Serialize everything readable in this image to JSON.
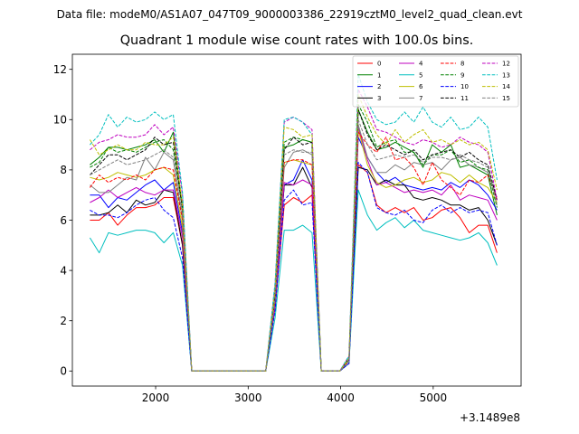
{
  "suptitle": "Data file: modeM0/AS1A07_047T09_9000003386_22919cztM0_level2_quad_clean.evt",
  "chart_data": {
    "type": "line",
    "title": "Quadrant 1 module wise count rates with 100.0s bins.",
    "xlabel": "",
    "ylabel": "",
    "x_offset_label": "+3.1489e8",
    "xlim": [
      1100,
      5950
    ],
    "ylim": [
      -0.6,
      12.6
    ],
    "x_ticks": [
      2000,
      3000,
      4000,
      5000
    ],
    "y_ticks": [
      0,
      2,
      4,
      6,
      8,
      10,
      12
    ],
    "legend_position": "top-right",
    "x": [
      1290,
      1390,
      1490,
      1590,
      1690,
      1790,
      1890,
      1990,
      2090,
      2190,
      2290,
      2390,
      2490,
      2590,
      2690,
      2790,
      2890,
      2990,
      3090,
      3190,
      3290,
      3390,
      3490,
      3590,
      3690,
      3790,
      3890,
      3990,
      4090,
      4190,
      4290,
      4390,
      4490,
      4590,
      4690,
      4790,
      4890,
      4990,
      5090,
      5190,
      5290,
      5390,
      5490,
      5590,
      5690
    ],
    "series": [
      {
        "name": "0",
        "color": "#ff0000",
        "dash": "solid",
        "values": [
          6.0,
          6.0,
          6.3,
          5.8,
          6.2,
          6.5,
          6.5,
          6.6,
          6.9,
          6.9,
          5.0,
          0,
          0,
          0,
          0,
          0,
          0,
          0,
          0,
          0,
          2.5,
          6.6,
          6.9,
          6.7,
          7.0,
          0,
          0,
          0,
          0.3,
          8.2,
          7.9,
          6.6,
          6.3,
          6.5,
          6.3,
          6.5,
          6.0,
          6.1,
          6.4,
          6.5,
          6.1,
          5.5,
          5.8,
          5.8,
          4.7
        ]
      },
      {
        "name": "1",
        "color": "#008000",
        "dash": "solid",
        "values": [
          8.2,
          8.5,
          8.9,
          8.9,
          8.8,
          8.9,
          9.0,
          9.2,
          8.7,
          9.5,
          6.5,
          0,
          0,
          0,
          0,
          0,
          0,
          0,
          0,
          0,
          3.0,
          8.9,
          9.0,
          9.2,
          9.1,
          0,
          0,
          0,
          0.5,
          10.4,
          9.5,
          8.8,
          8.9,
          9.1,
          8.9,
          8.7,
          8.1,
          9.0,
          8.7,
          9.0,
          8.1,
          8.2,
          8.0,
          7.8,
          6.2
        ]
      },
      {
        "name": "2",
        "color": "#0000ff",
        "dash": "solid",
        "values": [
          7.0,
          7.0,
          6.5,
          6.9,
          6.8,
          7.1,
          7.4,
          7.6,
          7.2,
          7.5,
          5.5,
          0,
          0,
          0,
          0,
          0,
          0,
          0,
          0,
          0,
          2.7,
          7.4,
          7.6,
          8.4,
          7.6,
          0,
          0,
          0,
          0.4,
          9.3,
          8.5,
          7.9,
          7.5,
          7.7,
          7.4,
          7.3,
          7.2,
          7.3,
          7.2,
          7.5,
          7.3,
          7.6,
          7.4,
          7.0,
          6.4
        ]
      },
      {
        "name": "3",
        "color": "#000000",
        "dash": "solid",
        "values": [
          6.2,
          6.2,
          6.3,
          6.6,
          6.3,
          6.8,
          6.6,
          6.7,
          7.2,
          7.1,
          5.0,
          0,
          0,
          0,
          0,
          0,
          0,
          0,
          0,
          0,
          2.6,
          7.4,
          7.4,
          8.1,
          7.3,
          0,
          0,
          0,
          0.4,
          8.1,
          8.0,
          7.4,
          7.6,
          7.4,
          7.4,
          6.9,
          6.8,
          6.9,
          6.8,
          6.6,
          6.6,
          6.4,
          6.5,
          6.0,
          5.0
        ]
      },
      {
        "name": "4",
        "color": "#bf00bf",
        "dash": "solid",
        "values": [
          6.7,
          6.9,
          7.2,
          6.9,
          7.1,
          7.3,
          7.1,
          7.0,
          7.2,
          7.2,
          5.3,
          0,
          0,
          0,
          0,
          0,
          0,
          0,
          0,
          0,
          2.6,
          7.5,
          7.4,
          7.6,
          7.4,
          0,
          0,
          0,
          0.4,
          9.7,
          8.4,
          7.4,
          7.5,
          7.3,
          7.1,
          7.2,
          7.1,
          7.2,
          7.0,
          7.4,
          6.8,
          7.0,
          6.9,
          6.8,
          6.0
        ]
      },
      {
        "name": "5",
        "color": "#00bfbf",
        "dash": "solid",
        "values": [
          5.3,
          4.7,
          5.5,
          5.4,
          5.5,
          5.6,
          5.6,
          5.5,
          5.1,
          5.5,
          4.2,
          0,
          0,
          0,
          0,
          0,
          0,
          0,
          0,
          0,
          2.1,
          5.6,
          5.6,
          5.8,
          5.5,
          0,
          0,
          0,
          0.3,
          7.2,
          6.2,
          5.6,
          5.9,
          6.1,
          5.7,
          6.0,
          5.6,
          5.5,
          5.4,
          5.3,
          5.2,
          5.3,
          5.5,
          5.1,
          4.2
        ]
      },
      {
        "name": "6",
        "color": "#bfbf00",
        "dash": "solid",
        "values": [
          7.7,
          7.6,
          7.7,
          7.9,
          7.8,
          7.7,
          7.8,
          8.0,
          8.1,
          7.8,
          5.7,
          0,
          0,
          0,
          0,
          0,
          0,
          0,
          0,
          0,
          2.8,
          8.3,
          8.4,
          8.3,
          8.2,
          0,
          0,
          0,
          0.4,
          9.6,
          8.2,
          7.5,
          7.3,
          7.4,
          7.6,
          7.7,
          7.5,
          7.6,
          7.9,
          7.8,
          7.5,
          7.8,
          7.5,
          7.3,
          6.7
        ]
      },
      {
        "name": "7",
        "color": "#808080",
        "dash": "solid",
        "values": [
          7.4,
          7.1,
          7.1,
          7.4,
          7.7,
          7.6,
          8.5,
          8.0,
          8.7,
          8.4,
          6.0,
          0,
          0,
          0,
          0,
          0,
          0,
          0,
          0,
          0,
          2.9,
          8.1,
          8.7,
          8.8,
          8.6,
          0,
          0,
          0,
          0.4,
          9.8,
          8.5,
          7.9,
          7.9,
          8.2,
          8.0,
          8.3,
          8.2,
          8.3,
          8.0,
          8.4,
          8.5,
          8.2,
          8.1,
          7.9,
          6.9
        ]
      },
      {
        "name": "8",
        "color": "#ff0000",
        "dash": "dashed",
        "values": [
          7.3,
          7.8,
          7.5,
          7.7,
          7.6,
          7.8,
          7.6,
          8.0,
          8.1,
          8.0,
          6.0,
          0,
          0,
          0,
          0,
          0,
          0,
          0,
          0,
          0,
          2.9,
          8.3,
          8.4,
          8.4,
          8.2,
          0,
          0,
          0,
          0.4,
          9.5,
          9.0,
          8.7,
          9.3,
          8.4,
          8.5,
          8.1,
          7.4,
          8.3,
          7.6,
          7.3,
          7.0,
          7.6,
          7.5,
          7.8,
          6.8
        ]
      },
      {
        "name": "9",
        "color": "#008000",
        "dash": "dashed",
        "values": [
          8.1,
          8.3,
          8.9,
          8.7,
          8.8,
          8.7,
          8.9,
          9.1,
          9.2,
          8.8,
          6.5,
          0,
          0,
          0,
          0,
          0,
          0,
          0,
          0,
          0,
          3.0,
          9.1,
          9.3,
          9.2,
          9.1,
          0,
          0,
          0,
          0.5,
          10.6,
          9.9,
          8.9,
          9.1,
          9.2,
          8.7,
          8.7,
          8.2,
          8.6,
          8.6,
          8.8,
          8.3,
          8.4,
          8.1,
          8.0,
          6.5
        ]
      },
      {
        "name": "10",
        "color": "#0000ff",
        "dash": "dashed",
        "values": [
          6.4,
          6.2,
          6.2,
          6.1,
          6.3,
          6.6,
          6.8,
          6.9,
          6.4,
          6.1,
          4.5,
          0,
          0,
          0,
          0,
          0,
          0,
          0,
          0,
          0,
          2.4,
          6.8,
          7.2,
          6.6,
          6.7,
          0,
          0,
          0,
          0.3,
          8.3,
          7.9,
          6.5,
          6.3,
          6.2,
          6.4,
          6.0,
          5.9,
          6.4,
          6.6,
          6.3,
          6.5,
          6.3,
          6.4,
          6.3,
          5.0
        ]
      },
      {
        "name": "11",
        "color": "#000000",
        "dash": "dashed",
        "values": [
          7.8,
          8.2,
          8.6,
          8.6,
          8.4,
          8.6,
          8.8,
          9.3,
          9.0,
          9.1,
          6.4,
          0,
          0,
          0,
          0,
          0,
          0,
          0,
          0,
          0,
          3.0,
          8.8,
          9.3,
          9.0,
          9.1,
          0,
          0,
          0,
          0.5,
          10.4,
          9.4,
          8.8,
          9.0,
          8.8,
          8.6,
          8.8,
          8.4,
          8.6,
          8.7,
          8.8,
          8.5,
          8.7,
          8.4,
          8.2,
          6.8
        ]
      },
      {
        "name": "12",
        "color": "#bf00bf",
        "dash": "dashed",
        "values": [
          8.8,
          9.1,
          9.2,
          9.4,
          9.3,
          9.3,
          9.4,
          9.8,
          9.4,
          9.7,
          7.0,
          0,
          0,
          0,
          0,
          0,
          0,
          0,
          0,
          0,
          3.4,
          9.9,
          10.1,
          9.9,
          9.6,
          0,
          0,
          0,
          0.6,
          11.2,
          10.5,
          9.6,
          9.5,
          9.3,
          9.1,
          9.0,
          9.2,
          9.1,
          8.9,
          9.0,
          9.3,
          9.1,
          9.0,
          8.7,
          6.8
        ]
      },
      {
        "name": "13",
        "color": "#00bfbf",
        "dash": "dashed",
        "values": [
          9.0,
          9.4,
          10.2,
          9.7,
          10.1,
          9.9,
          10.0,
          10.3,
          10.0,
          10.2,
          7.1,
          0,
          0,
          0,
          0,
          0,
          0,
          0,
          0,
          0,
          3.5,
          10.0,
          10.1,
          9.9,
          9.4,
          0,
          0,
          0,
          0.6,
          11.8,
          10.7,
          10.0,
          9.8,
          9.9,
          10.3,
          9.9,
          10.5,
          9.9,
          9.7,
          10.1,
          9.6,
          9.7,
          10.1,
          9.7,
          7.6
        ]
      },
      {
        "name": "14",
        "color": "#bfbf00",
        "dash": "dashed",
        "values": [
          9.2,
          8.6,
          8.8,
          9.0,
          8.8,
          8.8,
          9.1,
          9.0,
          9.0,
          9.3,
          6.6,
          0,
          0,
          0,
          0,
          0,
          0,
          0,
          0,
          0,
          3.2,
          9.7,
          9.6,
          9.3,
          9.4,
          0,
          0,
          0,
          0.5,
          11.0,
          10.1,
          9.4,
          9.0,
          9.6,
          9.1,
          9.4,
          9.6,
          9.1,
          9.2,
          9.0,
          9.2,
          9.0,
          9.1,
          8.8,
          7.2
        ]
      },
      {
        "name": "15",
        "color": "#808080",
        "dash": "dashed",
        "values": [
          7.8,
          8.0,
          8.2,
          8.4,
          8.2,
          8.3,
          8.4,
          8.6,
          8.8,
          8.5,
          6.2,
          0,
          0,
          0,
          0,
          0,
          0,
          0,
          0,
          0,
          2.9,
          8.6,
          8.8,
          8.7,
          8.7,
          0,
          0,
          0,
          0.4,
          10.0,
          9.0,
          8.4,
          8.5,
          8.6,
          8.5,
          8.6,
          8.3,
          8.5,
          8.5,
          8.4,
          8.6,
          8.4,
          8.3,
          8.1,
          6.6
        ]
      }
    ]
  }
}
